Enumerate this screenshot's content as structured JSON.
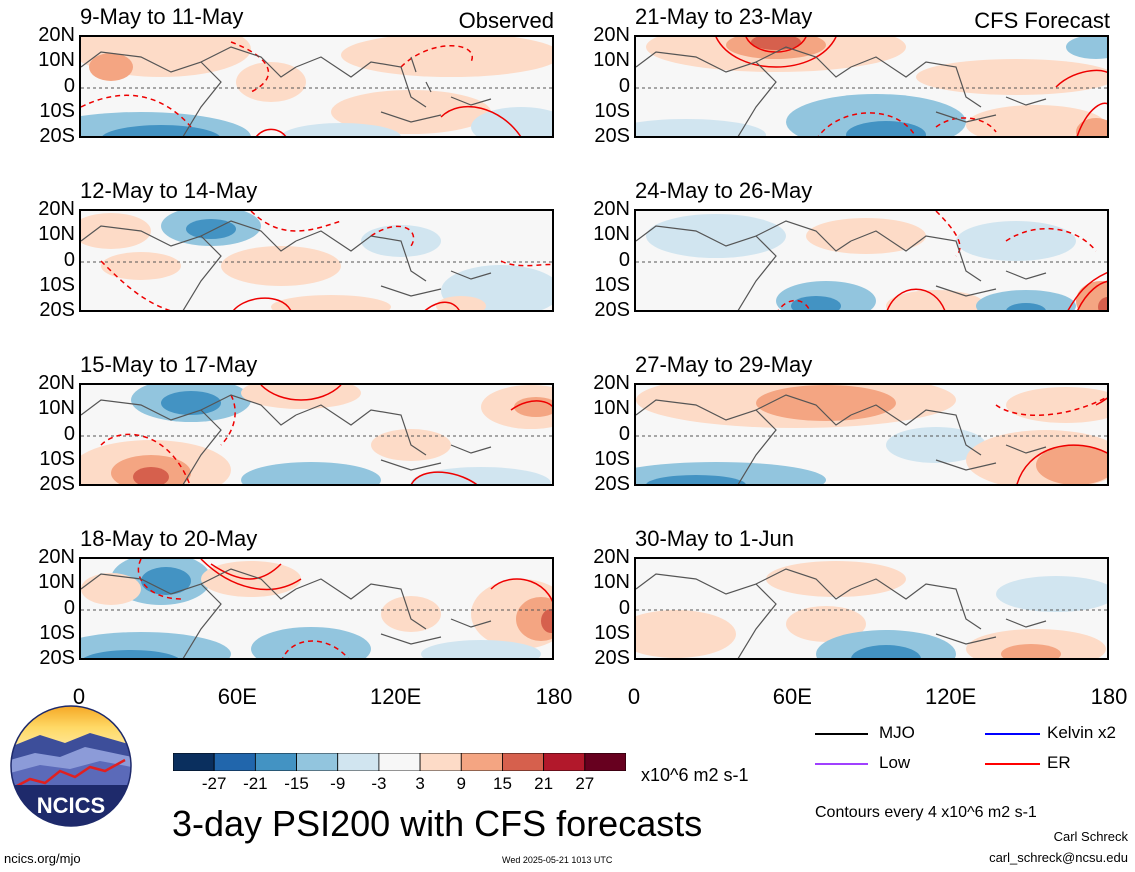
{
  "panels": [
    {
      "title": "9-May to 11-May",
      "tag": "Observed"
    },
    {
      "title": "12-May to 14-May",
      "tag": ""
    },
    {
      "title": "15-May to 17-May",
      "tag": ""
    },
    {
      "title": "18-May to 20-May",
      "tag": ""
    },
    {
      "title": "21-May to 23-May",
      "tag": "CFS Forecast"
    },
    {
      "title": "24-May to 26-May",
      "tag": ""
    },
    {
      "title": "27-May to 29-May",
      "tag": ""
    },
    {
      "title": "30-May to 1-Jun",
      "tag": ""
    }
  ],
  "lat_labels": [
    "20N",
    "10N",
    "0",
    "10S",
    "20S"
  ],
  "lon_labels": [
    "0",
    "60E",
    "120E",
    "180"
  ],
  "colorbar": {
    "colors": [
      "#0a2f5e",
      "#2166ac",
      "#4393c3",
      "#92c5de",
      "#d1e5f0",
      "#f7f7f7",
      "#fddbc7",
      "#f4a582",
      "#d6604d",
      "#b2182b",
      "#67001f"
    ],
    "ticks": [
      "-27",
      "-21",
      "-15",
      "-9",
      "-3",
      "3",
      "9",
      "15",
      "21",
      "27"
    ],
    "units": "x10^6 m2 s-1"
  },
  "legend": [
    {
      "label": "MJO",
      "color": "#000000"
    },
    {
      "label": "Kelvin x2",
      "color": "#0000ff"
    },
    {
      "label": "Low",
      "color": "#a040ff"
    },
    {
      "label": "ER",
      "color": "#ff0000"
    }
  ],
  "contour_note": "Contours every 4 x10^6 m2 s-1",
  "title": "3-day PSI200 with CFS forecasts",
  "author": "Carl Schreck",
  "email": "carl_schreck@ncsu.edu",
  "website": "ncics.org/mjo",
  "timestamp": "Wed 2025-05-21 1013 UTC",
  "logo_text": "NCICS"
}
